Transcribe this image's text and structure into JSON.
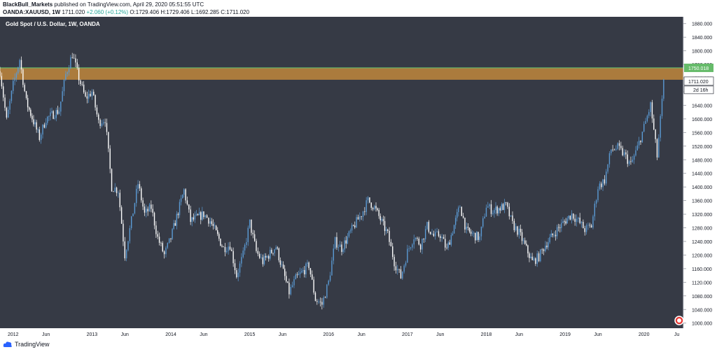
{
  "header": {
    "publisher": "BlackBull_Markets",
    "published_text": "published on TradingView.com, April 29, 2020 05:51:55 UTC",
    "symbol": "OANDA:XAUUSD, 1W",
    "last": "1711.020",
    "change": "+2.060 (+0.12%)",
    "o_label": "O:",
    "o": "1729.406",
    "h_label": "H:",
    "h": "1729.406",
    "l_label": "L:",
    "l": "1692.285",
    "c_label": "C:",
    "c": "1711.020"
  },
  "footer": {
    "brand": "TradingView"
  },
  "colors": {
    "background": "#363a45",
    "up_candle": "#5b9bd5",
    "down_candle": "#ffffff",
    "zone_fill": "#b5813d",
    "resistance_line": "#66bb6a",
    "axis_bg": "#ffffff",
    "axis_text": "#131722"
  },
  "chart_data": {
    "type": "candlestick",
    "title": "Gold Spot / U.S. Dollar, 1W, OANDA",
    "x_ticks": [
      "2012",
      "Jun",
      "2013",
      "Jun",
      "2014",
      "Jun",
      "2015",
      "Jun",
      "2016",
      "Jun",
      "2017",
      "Jun",
      "2018",
      "Jun",
      "2019",
      "Jun",
      "2020",
      "Ju"
    ],
    "x_range": [
      "2011-11",
      "2020-07"
    ],
    "y_ticks": [
      "1880.000",
      "1840.000",
      "1800.000",
      "1760.000",
      "1720.000",
      "1680.000",
      "1640.000",
      "1600.000",
      "1560.000",
      "1520.000",
      "1480.000",
      "1440.000",
      "1400.000",
      "1360.000",
      "1320.000",
      "1280.000",
      "1240.000",
      "1200.000",
      "1160.000",
      "1120.000",
      "1080.000",
      "1040.000",
      "1000.000"
    ],
    "ylim": [
      985,
      1900
    ],
    "resistance_level": {
      "value": 1750.018,
      "label": "1750.018"
    },
    "resistance_zone": [
      1715,
      1750
    ],
    "last_price": {
      "value": 1711.02,
      "label": "1711.020",
      "countdown": "2d 16h"
    },
    "price_path": [
      [
        "2011-11",
        1740
      ],
      [
        "2011-12",
        1595
      ],
      [
        "2012-01",
        1700
      ],
      [
        "2012-02",
        1775
      ],
      [
        "2012-03",
        1650
      ],
      [
        "2012-05",
        1545
      ],
      [
        "2012-06",
        1600
      ],
      [
        "2012-08",
        1625
      ],
      [
        "2012-09",
        1730
      ],
      [
        "2012-10",
        1790
      ],
      [
        "2012-11",
        1720
      ],
      [
        "2012-12",
        1660
      ],
      [
        "2013-01",
        1680
      ],
      [
        "2013-02",
        1590
      ],
      [
        "2013-03",
        1600
      ],
      [
        "2013-04",
        1400
      ],
      [
        "2013-05",
        1390
      ],
      [
        "2013-06",
        1200
      ],
      [
        "2013-07",
        1300
      ],
      [
        "2013-08",
        1410
      ],
      [
        "2013-09",
        1320
      ],
      [
        "2013-10",
        1340
      ],
      [
        "2013-11",
        1250
      ],
      [
        "2013-12",
        1200
      ],
      [
        "2014-01",
        1250
      ],
      [
        "2014-03",
        1390
      ],
      [
        "2014-04",
        1300
      ],
      [
        "2014-06",
        1320
      ],
      [
        "2014-07",
        1300
      ],
      [
        "2014-09",
        1220
      ],
      [
        "2014-10",
        1230
      ],
      [
        "2014-11",
        1140
      ],
      [
        "2014-12",
        1200
      ],
      [
        "2015-01",
        1295
      ],
      [
        "2015-02",
        1210
      ],
      [
        "2015-03",
        1180
      ],
      [
        "2015-05",
        1225
      ],
      [
        "2015-07",
        1090
      ],
      [
        "2015-08",
        1130
      ],
      [
        "2015-10",
        1170
      ],
      [
        "2015-11",
        1070
      ],
      [
        "2015-12",
        1055
      ],
      [
        "2016-01",
        1120
      ],
      [
        "2016-02",
        1240
      ],
      [
        "2016-03",
        1220
      ],
      [
        "2016-05",
        1290
      ],
      [
        "2016-06",
        1320
      ],
      [
        "2016-07",
        1360
      ],
      [
        "2016-08",
        1340
      ],
      [
        "2016-10",
        1260
      ],
      [
        "2016-11",
        1180
      ],
      [
        "2016-12",
        1135
      ],
      [
        "2017-01",
        1210
      ],
      [
        "2017-02",
        1255
      ],
      [
        "2017-03",
        1230
      ],
      [
        "2017-04",
        1285
      ],
      [
        "2017-05",
        1255
      ],
      [
        "2017-06",
        1260
      ],
      [
        "2017-07",
        1215
      ],
      [
        "2017-09",
        1345
      ],
      [
        "2017-10",
        1270
      ],
      [
        "2017-12",
        1250
      ],
      [
        "2018-01",
        1345
      ],
      [
        "2018-02",
        1330
      ],
      [
        "2018-04",
        1345
      ],
      [
        "2018-05",
        1290
      ],
      [
        "2018-06",
        1265
      ],
      [
        "2018-08",
        1180
      ],
      [
        "2018-09",
        1195
      ],
      [
        "2018-10",
        1230
      ],
      [
        "2018-12",
        1280
      ],
      [
        "2019-02",
        1320
      ],
      [
        "2019-03",
        1300
      ],
      [
        "2019-04",
        1275
      ],
      [
        "2019-05",
        1285
      ],
      [
        "2019-06",
        1400
      ],
      [
        "2019-07",
        1420
      ],
      [
        "2019-08",
        1510
      ],
      [
        "2019-09",
        1515
      ],
      [
        "2019-10",
        1495
      ],
      [
        "2019-11",
        1465
      ],
      [
        "2019-12",
        1515
      ],
      [
        "2020-01",
        1575
      ],
      [
        "2020-02",
        1640
      ],
      [
        "2020-03",
        1490
      ],
      [
        "2020-04",
        1705
      ]
    ]
  }
}
